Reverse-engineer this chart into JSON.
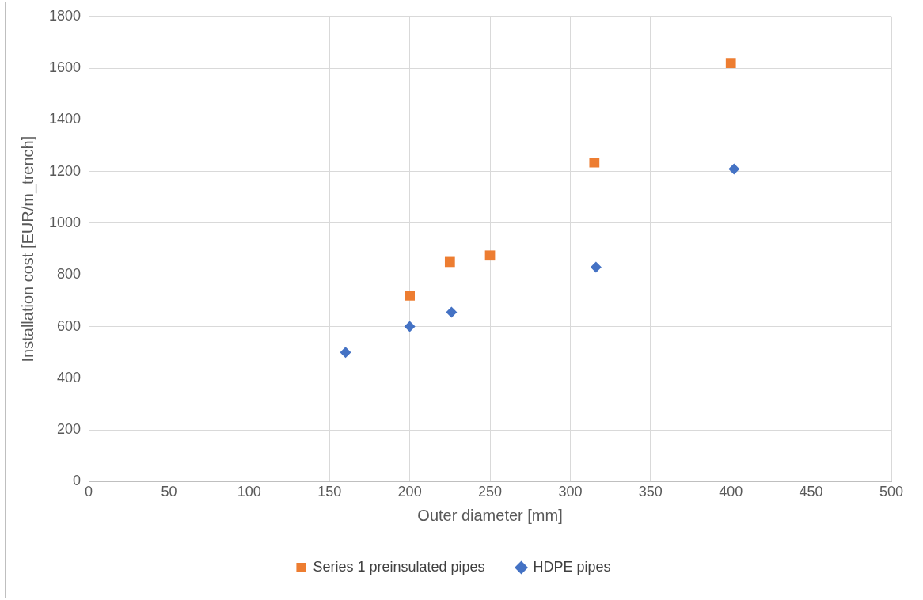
{
  "chart_data": {
    "type": "scatter",
    "xlabel": "Outer diameter [mm]",
    "ylabel": "Installation cost [EUR/m_trench]",
    "series": [
      {
        "name": "Series 1 preinsulated pipes",
        "color": "#ed7d31",
        "marker": "square",
        "x": [
          200,
          225,
          250,
          315,
          400
        ],
        "values": [
          720,
          850,
          875,
          1235,
          1620
        ]
      },
      {
        "name": "HDPE pipes",
        "color": "#4472c4",
        "marker": "diamond",
        "x": [
          160,
          200,
          226,
          316,
          402
        ],
        "values": [
          500,
          600,
          655,
          830,
          1210
        ]
      }
    ],
    "xlim": [
      0,
      500
    ],
    "xticks": [
      0,
      50,
      100,
      150,
      200,
      250,
      300,
      350,
      400,
      450,
      500
    ],
    "ylim": [
      0,
      1800
    ],
    "yticks": [
      0,
      200,
      400,
      600,
      800,
      1000,
      1200,
      1400,
      1600,
      1800
    ],
    "grid": true,
    "legend": "bottom"
  }
}
